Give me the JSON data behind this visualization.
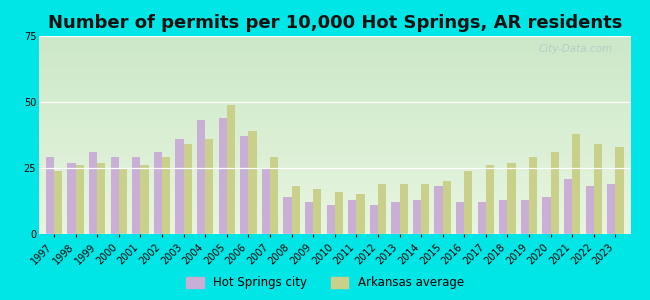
{
  "title": "Number of permits per 10,000 Hot Springs, AR residents",
  "years": [
    1997,
    1998,
    1999,
    2000,
    2001,
    2002,
    2003,
    2004,
    2005,
    2006,
    2007,
    2008,
    2009,
    2010,
    2011,
    2012,
    2013,
    2014,
    2015,
    2016,
    2017,
    2018,
    2019,
    2020,
    2021,
    2022,
    2023
  ],
  "city_values": [
    29,
    27,
    31,
    29,
    29,
    31,
    36,
    43,
    44,
    37,
    25,
    14,
    12,
    11,
    13,
    11,
    12,
    13,
    18,
    12,
    12,
    13,
    13,
    14,
    21,
    18,
    19
  ],
  "ar_values": [
    24,
    26,
    27,
    25,
    26,
    29,
    34,
    36,
    49,
    39,
    29,
    18,
    17,
    16,
    15,
    19,
    19,
    19,
    20,
    24,
    26,
    27,
    29,
    31,
    38,
    34,
    33
  ],
  "city_color": "#c9aed6",
  "ar_color": "#c8d08a",
  "ylim": [
    0,
    75
  ],
  "yticks": [
    0,
    25,
    50,
    75
  ],
  "outer_bg": "#00e5e5",
  "legend_city": "Hot Springs city",
  "legend_ar": "Arkansas average",
  "watermark": "City-Data.com",
  "title_fontsize": 13,
  "bar_width": 0.38,
  "tick_fontsize": 7
}
